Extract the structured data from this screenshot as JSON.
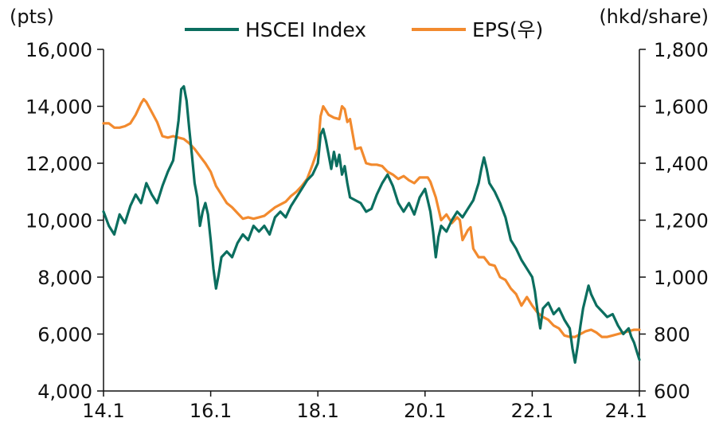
{
  "chart_data": {
    "type": "line",
    "y_left_unit": "(pts)",
    "y_right_unit": "(hkd/share)",
    "x_tick_labels": [
      "14.1",
      "16.1",
      "18.1",
      "20.1",
      "22.1",
      "24.1"
    ],
    "y_left_range": [
      4000,
      16000
    ],
    "y_left_ticks": [
      4000,
      6000,
      8000,
      10000,
      12000,
      14000,
      16000
    ],
    "y_left_tick_labels": [
      "4,000",
      "6,000",
      "8,000",
      "10,000",
      "12,000",
      "14,000",
      "16,000"
    ],
    "y_right_range": [
      600,
      1800
    ],
    "y_right_ticks": [
      600,
      800,
      1000,
      1200,
      1400,
      1600,
      1800
    ],
    "y_right_tick_labels": [
      "600",
      "800",
      "1,000",
      "1,200",
      "1,400",
      "1,600",
      "1,800"
    ],
    "x_range": [
      2014.0,
      2024.0
    ],
    "legend_position": "top-center",
    "grid": false,
    "series": [
      {
        "name": "HSCEI Index",
        "axis": "left",
        "color": "#0b6e5f",
        "points": [
          [
            2014.0,
            10300
          ],
          [
            2014.1,
            9800
          ],
          [
            2014.2,
            9500
          ],
          [
            2014.3,
            10200
          ],
          [
            2014.4,
            9900
          ],
          [
            2014.5,
            10500
          ],
          [
            2014.6,
            10900
          ],
          [
            2014.7,
            10600
          ],
          [
            2014.8,
            11300
          ],
          [
            2014.9,
            10900
          ],
          [
            2015.0,
            10600
          ],
          [
            2015.1,
            11200
          ],
          [
            2015.2,
            11700
          ],
          [
            2015.3,
            12100
          ],
          [
            2015.35,
            12800
          ],
          [
            2015.4,
            13500
          ],
          [
            2015.45,
            14600
          ],
          [
            2015.5,
            14700
          ],
          [
            2015.55,
            14200
          ],
          [
            2015.6,
            13200
          ],
          [
            2015.65,
            12300
          ],
          [
            2015.7,
            11300
          ],
          [
            2015.75,
            10800
          ],
          [
            2015.8,
            9800
          ],
          [
            2015.85,
            10300
          ],
          [
            2015.9,
            10600
          ],
          [
            2015.95,
            10200
          ],
          [
            2016.0,
            9300
          ],
          [
            2016.05,
            8300
          ],
          [
            2016.1,
            7600
          ],
          [
            2016.15,
            8100
          ],
          [
            2016.2,
            8700
          ],
          [
            2016.3,
            8900
          ],
          [
            2016.4,
            8700
          ],
          [
            2016.5,
            9200
          ],
          [
            2016.6,
            9500
          ],
          [
            2016.7,
            9300
          ],
          [
            2016.8,
            9800
          ],
          [
            2016.9,
            9600
          ],
          [
            2017.0,
            9800
          ],
          [
            2017.1,
            9500
          ],
          [
            2017.2,
            10100
          ],
          [
            2017.3,
            10300
          ],
          [
            2017.4,
            10100
          ],
          [
            2017.5,
            10500
          ],
          [
            2017.6,
            10800
          ],
          [
            2017.7,
            11100
          ],
          [
            2017.8,
            11400
          ],
          [
            2017.9,
            11600
          ],
          [
            2018.0,
            12000
          ],
          [
            2018.05,
            13000
          ],
          [
            2018.1,
            13200
          ],
          [
            2018.15,
            12800
          ],
          [
            2018.2,
            12300
          ],
          [
            2018.25,
            11800
          ],
          [
            2018.3,
            12400
          ],
          [
            2018.35,
            11900
          ],
          [
            2018.4,
            12300
          ],
          [
            2018.45,
            11600
          ],
          [
            2018.5,
            11900
          ],
          [
            2018.55,
            11300
          ],
          [
            2018.6,
            10800
          ],
          [
            2018.7,
            10700
          ],
          [
            2018.8,
            10600
          ],
          [
            2018.9,
            10300
          ],
          [
            2019.0,
            10400
          ],
          [
            2019.1,
            10900
          ],
          [
            2019.2,
            11300
          ],
          [
            2019.3,
            11600
          ],
          [
            2019.4,
            11200
          ],
          [
            2019.5,
            10600
          ],
          [
            2019.6,
            10300
          ],
          [
            2019.7,
            10600
          ],
          [
            2019.8,
            10200
          ],
          [
            2019.9,
            10800
          ],
          [
            2020.0,
            11100
          ],
          [
            2020.05,
            10700
          ],
          [
            2020.1,
            10300
          ],
          [
            2020.15,
            9600
          ],
          [
            2020.2,
            8700
          ],
          [
            2020.25,
            9400
          ],
          [
            2020.3,
            9800
          ],
          [
            2020.4,
            9600
          ],
          [
            2020.5,
            10000
          ],
          [
            2020.6,
            10300
          ],
          [
            2020.7,
            10100
          ],
          [
            2020.8,
            10400
          ],
          [
            2020.9,
            10700
          ],
          [
            2021.0,
            11300
          ],
          [
            2021.05,
            11800
          ],
          [
            2021.1,
            12200
          ],
          [
            2021.15,
            11800
          ],
          [
            2021.2,
            11300
          ],
          [
            2021.3,
            11000
          ],
          [
            2021.4,
            10600
          ],
          [
            2021.5,
            10100
          ],
          [
            2021.6,
            9300
          ],
          [
            2021.7,
            9000
          ],
          [
            2021.8,
            8600
          ],
          [
            2021.9,
            8300
          ],
          [
            2022.0,
            8000
          ],
          [
            2022.05,
            7500
          ],
          [
            2022.1,
            6800
          ],
          [
            2022.15,
            6200
          ],
          [
            2022.2,
            6900
          ],
          [
            2022.3,
            7100
          ],
          [
            2022.4,
            6700
          ],
          [
            2022.5,
            6900
          ],
          [
            2022.6,
            6500
          ],
          [
            2022.7,
            6200
          ],
          [
            2022.75,
            5500
          ],
          [
            2022.8,
            5000
          ],
          [
            2022.85,
            5600
          ],
          [
            2022.9,
            6300
          ],
          [
            2022.95,
            6900
          ],
          [
            2023.0,
            7300
          ],
          [
            2023.05,
            7700
          ],
          [
            2023.1,
            7400
          ],
          [
            2023.2,
            7000
          ],
          [
            2023.3,
            6800
          ],
          [
            2023.4,
            6600
          ],
          [
            2023.5,
            6700
          ],
          [
            2023.6,
            6300
          ],
          [
            2023.7,
            6000
          ],
          [
            2023.8,
            6200
          ],
          [
            2023.85,
            5900
          ],
          [
            2023.9,
            5700
          ],
          [
            2023.95,
            5400
          ],
          [
            2024.0,
            5100
          ]
        ]
      },
      {
        "name": "EPS(우)",
        "axis": "right",
        "color": "#f28a2e",
        "points": [
          [
            2014.0,
            1540
          ],
          [
            2014.1,
            1540
          ],
          [
            2014.2,
            1525
          ],
          [
            2014.3,
            1525
          ],
          [
            2014.4,
            1530
          ],
          [
            2014.5,
            1540
          ],
          [
            2014.6,
            1570
          ],
          [
            2014.7,
            1610
          ],
          [
            2014.75,
            1625
          ],
          [
            2014.8,
            1615
          ],
          [
            2014.9,
            1580
          ],
          [
            2015.0,
            1545
          ],
          [
            2015.1,
            1495
          ],
          [
            2015.2,
            1490
          ],
          [
            2015.3,
            1495
          ],
          [
            2015.4,
            1490
          ],
          [
            2015.5,
            1485
          ],
          [
            2015.6,
            1470
          ],
          [
            2015.7,
            1450
          ],
          [
            2015.8,
            1425
          ],
          [
            2015.9,
            1400
          ],
          [
            2016.0,
            1370
          ],
          [
            2016.1,
            1320
          ],
          [
            2016.2,
            1290
          ],
          [
            2016.3,
            1260
          ],
          [
            2016.4,
            1245
          ],
          [
            2016.5,
            1225
          ],
          [
            2016.6,
            1205
          ],
          [
            2016.7,
            1210
          ],
          [
            2016.8,
            1205
          ],
          [
            2016.9,
            1210
          ],
          [
            2017.0,
            1215
          ],
          [
            2017.1,
            1230
          ],
          [
            2017.2,
            1245
          ],
          [
            2017.3,
            1255
          ],
          [
            2017.4,
            1265
          ],
          [
            2017.5,
            1285
          ],
          [
            2017.6,
            1300
          ],
          [
            2017.7,
            1320
          ],
          [
            2017.8,
            1345
          ],
          [
            2017.9,
            1395
          ],
          [
            2018.0,
            1450
          ],
          [
            2018.05,
            1565
          ],
          [
            2018.1,
            1600
          ],
          [
            2018.2,
            1570
          ],
          [
            2018.3,
            1560
          ],
          [
            2018.4,
            1555
          ],
          [
            2018.45,
            1600
          ],
          [
            2018.5,
            1590
          ],
          [
            2018.55,
            1545
          ],
          [
            2018.6,
            1555
          ],
          [
            2018.7,
            1450
          ],
          [
            2018.8,
            1455
          ],
          [
            2018.9,
            1400
          ],
          [
            2019.0,
            1395
          ],
          [
            2019.1,
            1395
          ],
          [
            2019.2,
            1390
          ],
          [
            2019.3,
            1370
          ],
          [
            2019.4,
            1360
          ],
          [
            2019.5,
            1345
          ],
          [
            2019.6,
            1355
          ],
          [
            2019.7,
            1340
          ],
          [
            2019.8,
            1330
          ],
          [
            2019.9,
            1350
          ],
          [
            2020.0,
            1350
          ],
          [
            2020.05,
            1350
          ],
          [
            2020.1,
            1335
          ],
          [
            2020.2,
            1280
          ],
          [
            2020.3,
            1200
          ],
          [
            2020.4,
            1220
          ],
          [
            2020.5,
            1190
          ],
          [
            2020.6,
            1210
          ],
          [
            2020.65,
            1200
          ],
          [
            2020.7,
            1130
          ],
          [
            2020.8,
            1165
          ],
          [
            2020.85,
            1175
          ],
          [
            2020.9,
            1100
          ],
          [
            2021.0,
            1070
          ],
          [
            2021.1,
            1070
          ],
          [
            2021.2,
            1045
          ],
          [
            2021.3,
            1040
          ],
          [
            2021.4,
            1000
          ],
          [
            2021.5,
            990
          ],
          [
            2021.6,
            960
          ],
          [
            2021.7,
            940
          ],
          [
            2021.8,
            900
          ],
          [
            2021.9,
            930
          ],
          [
            2022.0,
            900
          ],
          [
            2022.1,
            875
          ],
          [
            2022.2,
            860
          ],
          [
            2022.3,
            850
          ],
          [
            2022.4,
            830
          ],
          [
            2022.5,
            820
          ],
          [
            2022.6,
            795
          ],
          [
            2022.7,
            790
          ],
          [
            2022.8,
            790
          ],
          [
            2022.9,
            800
          ],
          [
            2023.0,
            810
          ],
          [
            2023.1,
            815
          ],
          [
            2023.2,
            805
          ],
          [
            2023.3,
            790
          ],
          [
            2023.4,
            790
          ],
          [
            2023.5,
            795
          ],
          [
            2023.6,
            800
          ],
          [
            2023.7,
            805
          ],
          [
            2023.8,
            810
          ],
          [
            2023.9,
            815
          ],
          [
            2024.0,
            815
          ]
        ]
      }
    ]
  }
}
